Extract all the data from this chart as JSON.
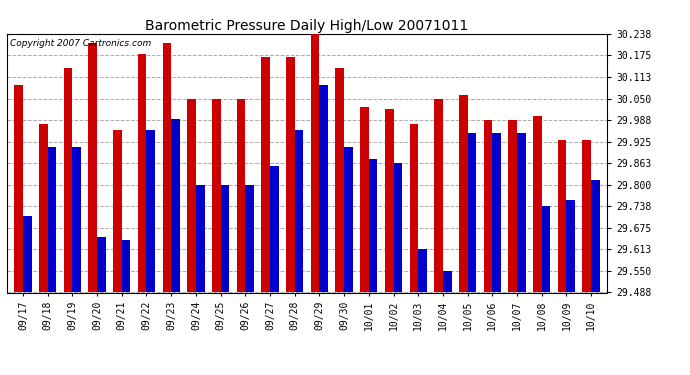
{
  "title": "Barometric Pressure Daily High/Low 20071011",
  "copyright": "Copyright 2007 Cartronics.com",
  "categories": [
    "09/17",
    "09/18",
    "09/19",
    "09/20",
    "09/21",
    "09/22",
    "09/23",
    "09/24",
    "09/25",
    "09/26",
    "09/27",
    "09/28",
    "09/29",
    "09/30",
    "10/01",
    "10/02",
    "10/03",
    "10/04",
    "10/05",
    "10/06",
    "10/07",
    "10/08",
    "10/09",
    "10/10"
  ],
  "highs": [
    30.09,
    29.975,
    30.14,
    30.21,
    29.96,
    30.18,
    30.21,
    30.05,
    30.05,
    30.05,
    30.17,
    30.17,
    30.238,
    30.14,
    30.025,
    30.02,
    29.975,
    30.05,
    30.06,
    29.988,
    29.988,
    30.0,
    29.93,
    29.93
  ],
  "lows": [
    29.71,
    29.91,
    29.91,
    29.65,
    29.64,
    29.96,
    29.99,
    29.8,
    29.8,
    29.8,
    29.855,
    29.96,
    30.09,
    29.91,
    29.875,
    29.862,
    29.615,
    29.55,
    29.95,
    29.95,
    29.95,
    29.738,
    29.755,
    29.813
  ],
  "bar_color_high": "#cc0000",
  "bar_color_low": "#0000cc",
  "ylim_min": 29.488,
  "ylim_max": 30.238,
  "yticks": [
    29.488,
    29.55,
    29.613,
    29.675,
    29.738,
    29.8,
    29.863,
    29.925,
    29.988,
    30.05,
    30.113,
    30.175,
    30.238
  ],
  "background_color": "#ffffff",
  "grid_color": "#aaaaaa",
  "bar_width": 0.35,
  "title_fontsize": 10,
  "tick_fontsize": 7,
  "copyright_fontsize": 6.5
}
